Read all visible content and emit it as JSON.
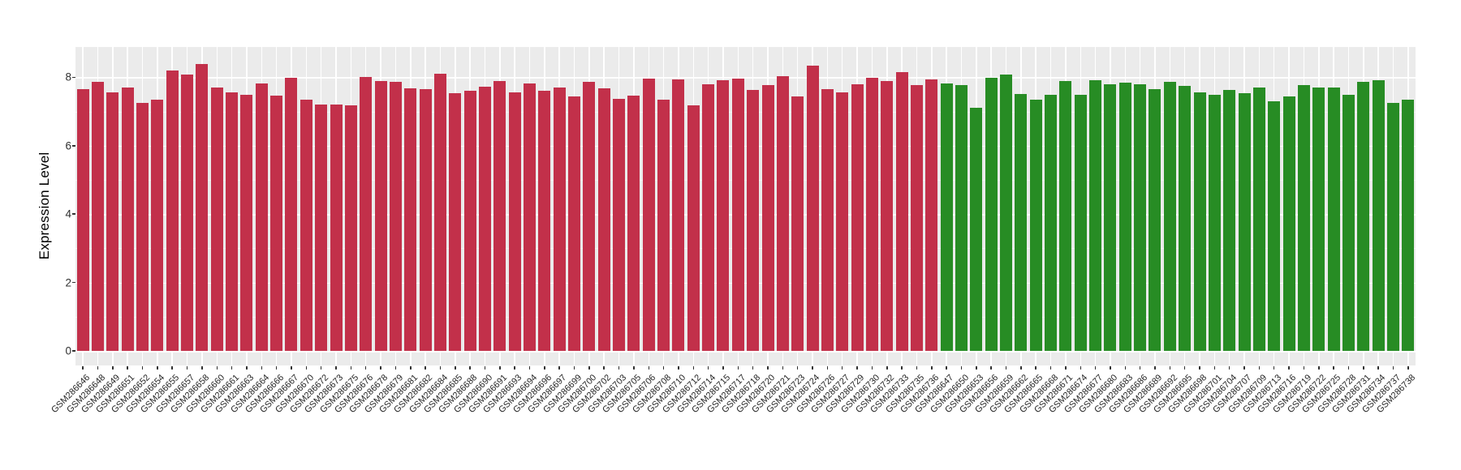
{
  "chart_data": {
    "type": "bar",
    "title": "",
    "xlabel": "",
    "ylabel": "Expression Level",
    "ylim": [
      0,
      8.8
    ],
    "yticks": [
      0,
      2,
      4,
      6,
      8
    ],
    "yticks_minor": [
      1,
      3,
      5,
      7
    ],
    "grid": "on",
    "legend": "none",
    "panel_bg": "#EBEBEB",
    "grid_color": "#FFFFFF",
    "tick_mark_color": "#333333",
    "tick_label_color": "#303030",
    "group_colors": {
      "group1": "#C2304A",
      "group2": "#278C24"
    },
    "bars": [
      {
        "label": "GSM286646",
        "value": 7.66,
        "group": "group1"
      },
      {
        "label": "GSM286648",
        "value": 7.86,
        "group": "group1"
      },
      {
        "label": "GSM286649",
        "value": 7.57,
        "group": "group1"
      },
      {
        "label": "GSM286651",
        "value": 7.71,
        "group": "group1"
      },
      {
        "label": "GSM286652",
        "value": 7.25,
        "group": "group1"
      },
      {
        "label": "GSM286654",
        "value": 7.35,
        "group": "group1"
      },
      {
        "label": "GSM286655",
        "value": 8.21,
        "group": "group1"
      },
      {
        "label": "GSM286657",
        "value": 8.09,
        "group": "group1"
      },
      {
        "label": "GSM286658",
        "value": 8.4,
        "group": "group1"
      },
      {
        "label": "GSM286660",
        "value": 7.69,
        "group": "group1"
      },
      {
        "label": "GSM286661",
        "value": 7.55,
        "group": "group1"
      },
      {
        "label": "GSM286663",
        "value": 7.5,
        "group": "group1"
      },
      {
        "label": "GSM286664",
        "value": 7.81,
        "group": "group1"
      },
      {
        "label": "GSM286666",
        "value": 7.46,
        "group": "group1"
      },
      {
        "label": "GSM286667",
        "value": 7.99,
        "group": "group1"
      },
      {
        "label": "GSM286670",
        "value": 7.34,
        "group": "group1"
      },
      {
        "label": "GSM286672",
        "value": 7.21,
        "group": "group1"
      },
      {
        "label": "GSM286673",
        "value": 7.21,
        "group": "group1"
      },
      {
        "label": "GSM286675",
        "value": 7.19,
        "group": "group1"
      },
      {
        "label": "GSM286676",
        "value": 8.01,
        "group": "group1"
      },
      {
        "label": "GSM286678",
        "value": 7.89,
        "group": "group1"
      },
      {
        "label": "GSM286679",
        "value": 7.87,
        "group": "group1"
      },
      {
        "label": "GSM286681",
        "value": 7.67,
        "group": "group1"
      },
      {
        "label": "GSM286682",
        "value": 7.66,
        "group": "group1"
      },
      {
        "label": "GSM286684",
        "value": 8.1,
        "group": "group1"
      },
      {
        "label": "GSM286685",
        "value": 7.54,
        "group": "group1"
      },
      {
        "label": "GSM286688",
        "value": 7.6,
        "group": "group1"
      },
      {
        "label": "GSM286690",
        "value": 7.73,
        "group": "group1"
      },
      {
        "label": "GSM286691",
        "value": 7.88,
        "group": "group1"
      },
      {
        "label": "GSM286693",
        "value": 7.57,
        "group": "group1"
      },
      {
        "label": "GSM286694",
        "value": 7.82,
        "group": "group1"
      },
      {
        "label": "GSM286696",
        "value": 7.61,
        "group": "group1"
      },
      {
        "label": "GSM286697",
        "value": 7.71,
        "group": "group1"
      },
      {
        "label": "GSM286699",
        "value": 7.45,
        "group": "group1"
      },
      {
        "label": "GSM286700",
        "value": 7.86,
        "group": "group1"
      },
      {
        "label": "GSM286702",
        "value": 7.67,
        "group": "group1"
      },
      {
        "label": "GSM286703",
        "value": 7.38,
        "group": "group1"
      },
      {
        "label": "GSM286705",
        "value": 7.46,
        "group": "group1"
      },
      {
        "label": "GSM286706",
        "value": 7.96,
        "group": "group1"
      },
      {
        "label": "GSM286708",
        "value": 7.34,
        "group": "group1"
      },
      {
        "label": "GSM286710",
        "value": 7.95,
        "group": "group1"
      },
      {
        "label": "GSM286712",
        "value": 7.19,
        "group": "group1"
      },
      {
        "label": "GSM286714",
        "value": 7.8,
        "group": "group1"
      },
      {
        "label": "GSM286715",
        "value": 7.92,
        "group": "group1"
      },
      {
        "label": "GSM286717",
        "value": 7.96,
        "group": "group1"
      },
      {
        "label": "GSM286718",
        "value": 7.63,
        "group": "group1"
      },
      {
        "label": "GSM286720",
        "value": 7.78,
        "group": "group1"
      },
      {
        "label": "GSM286721",
        "value": 8.03,
        "group": "group1"
      },
      {
        "label": "GSM286723",
        "value": 7.45,
        "group": "group1"
      },
      {
        "label": "GSM286724",
        "value": 8.35,
        "group": "group1"
      },
      {
        "label": "GSM286726",
        "value": 7.65,
        "group": "group1"
      },
      {
        "label": "GSM286727",
        "value": 7.57,
        "group": "group1"
      },
      {
        "label": "GSM286729",
        "value": 7.8,
        "group": "group1"
      },
      {
        "label": "GSM286730",
        "value": 7.98,
        "group": "group1"
      },
      {
        "label": "GSM286732",
        "value": 7.9,
        "group": "group1"
      },
      {
        "label": "GSM286733",
        "value": 8.16,
        "group": "group1"
      },
      {
        "label": "GSM286735",
        "value": 7.77,
        "group": "group1"
      },
      {
        "label": "GSM286736",
        "value": 7.95,
        "group": "group1"
      },
      {
        "label": "GSM286647",
        "value": 7.81,
        "group": "group2"
      },
      {
        "label": "GSM286650",
        "value": 7.78,
        "group": "group2"
      },
      {
        "label": "GSM286653",
        "value": 7.12,
        "group": "group2"
      },
      {
        "label": "GSM286656",
        "value": 7.98,
        "group": "group2"
      },
      {
        "label": "GSM286659",
        "value": 8.08,
        "group": "group2"
      },
      {
        "label": "GSM286662",
        "value": 7.51,
        "group": "group2"
      },
      {
        "label": "GSM286665",
        "value": 7.35,
        "group": "group2"
      },
      {
        "label": "GSM286668",
        "value": 7.49,
        "group": "group2"
      },
      {
        "label": "GSM286671",
        "value": 7.9,
        "group": "group2"
      },
      {
        "label": "GSM286674",
        "value": 7.49,
        "group": "group2"
      },
      {
        "label": "GSM286677",
        "value": 7.91,
        "group": "group2"
      },
      {
        "label": "GSM286680",
        "value": 7.8,
        "group": "group2"
      },
      {
        "label": "GSM286683",
        "value": 7.85,
        "group": "group2"
      },
      {
        "label": "GSM286686",
        "value": 7.8,
        "group": "group2"
      },
      {
        "label": "GSM286689",
        "value": 7.66,
        "group": "group2"
      },
      {
        "label": "GSM286692",
        "value": 7.87,
        "group": "group2"
      },
      {
        "label": "GSM286695",
        "value": 7.74,
        "group": "group2"
      },
      {
        "label": "GSM286698",
        "value": 7.55,
        "group": "group2"
      },
      {
        "label": "GSM286701",
        "value": 7.5,
        "group": "group2"
      },
      {
        "label": "GSM286704",
        "value": 7.62,
        "group": "group2"
      },
      {
        "label": "GSM286707",
        "value": 7.54,
        "group": "group2"
      },
      {
        "label": "GSM286709",
        "value": 7.7,
        "group": "group2"
      },
      {
        "label": "GSM286713",
        "value": 7.3,
        "group": "group2"
      },
      {
        "label": "GSM286716",
        "value": 7.43,
        "group": "group2"
      },
      {
        "label": "GSM286719",
        "value": 7.78,
        "group": "group2"
      },
      {
        "label": "GSM286722",
        "value": 7.69,
        "group": "group2"
      },
      {
        "label": "GSM286725",
        "value": 7.71,
        "group": "group2"
      },
      {
        "label": "GSM286728",
        "value": 7.48,
        "group": "group2"
      },
      {
        "label": "GSM286731",
        "value": 7.86,
        "group": "group2"
      },
      {
        "label": "GSM286734",
        "value": 7.92,
        "group": "group2"
      },
      {
        "label": "GSM286737",
        "value": 7.24,
        "group": "group2"
      },
      {
        "label": "GSM286738",
        "value": 7.34,
        "group": "group2"
      }
    ]
  }
}
